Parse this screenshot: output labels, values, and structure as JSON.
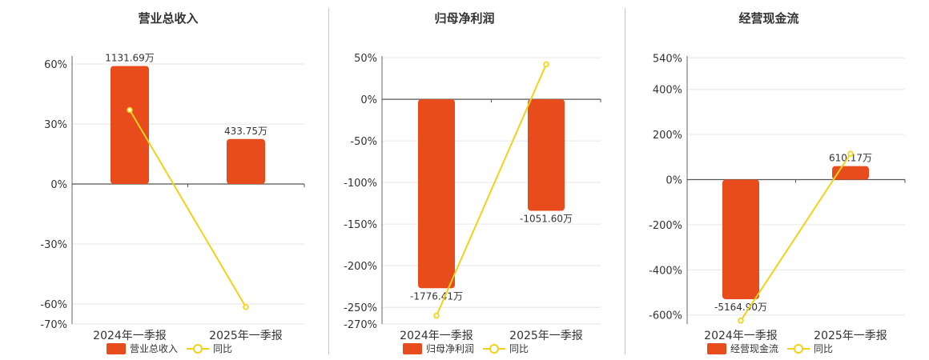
{
  "colors": {
    "bar": "#e84c1c",
    "line": "#f0d21a",
    "marker_fill": "#fff7cc",
    "grid": "#e6e6e6",
    "axis": "#666666",
    "zero_line": "#555555",
    "text": "#333333",
    "divider": "#c8c8c8"
  },
  "chart_data": [
    {
      "type": "bar",
      "title": "营业总收入",
      "categories": [
        "2024年一季报",
        "2025年一季报"
      ],
      "series": [
        {
          "name": "营业总收入",
          "kind": "bar",
          "values": [
            59,
            22.5
          ],
          "labels": [
            "1131.69万",
            "433.75万"
          ]
        },
        {
          "name": "同比",
          "kind": "line",
          "values": [
            37,
            -61.5
          ]
        }
      ],
      "yaxis": {
        "min": -70,
        "max": 64,
        "ticks": [
          60,
          30,
          0,
          -30,
          -60,
          -70
        ],
        "tick_labels": [
          "60%",
          "30%",
          "0%",
          "-30%",
          "-60%",
          "-70%"
        ]
      },
      "legend": "bottom"
    },
    {
      "type": "bar",
      "title": "归母净利润",
      "categories": [
        "2024年一季报",
        "2025年一季报"
      ],
      "series": [
        {
          "name": "归母净利润",
          "kind": "bar",
          "values": [
            -227,
            -134
          ],
          "labels": [
            "-1776.41万",
            "-1051.60万"
          ]
        },
        {
          "name": "同比",
          "kind": "line",
          "values": [
            -260,
            42
          ]
        }
      ],
      "yaxis": {
        "min": -270,
        "max": 52,
        "ticks": [
          50,
          0,
          -50,
          -100,
          -150,
          -200,
          -250,
          -270
        ],
        "tick_labels": [
          "50%",
          "0%",
          "-50%",
          "-100%",
          "-150%",
          "-200%",
          "-250%",
          "-270%"
        ]
      },
      "legend": "bottom"
    },
    {
      "type": "bar",
      "title": "经营现金流",
      "categories": [
        "2024年一季报",
        "2025年一季报"
      ],
      "series": [
        {
          "name": "经营现金流",
          "kind": "bar",
          "values": [
            -530,
            60
          ],
          "labels": [
            "-5164.90万",
            "610.17万"
          ]
        },
        {
          "name": "同比",
          "kind": "line",
          "values": [
            -625,
            115
          ]
        }
      ],
      "yaxis": {
        "min": -640,
        "max": 548,
        "ticks": [
          540,
          400,
          200,
          0,
          -200,
          -400,
          -600
        ],
        "tick_labels": [
          "540%",
          "400%",
          "200%",
          "0%",
          "-200%",
          "-400%",
          "-600%"
        ]
      },
      "legend": "bottom"
    }
  ]
}
